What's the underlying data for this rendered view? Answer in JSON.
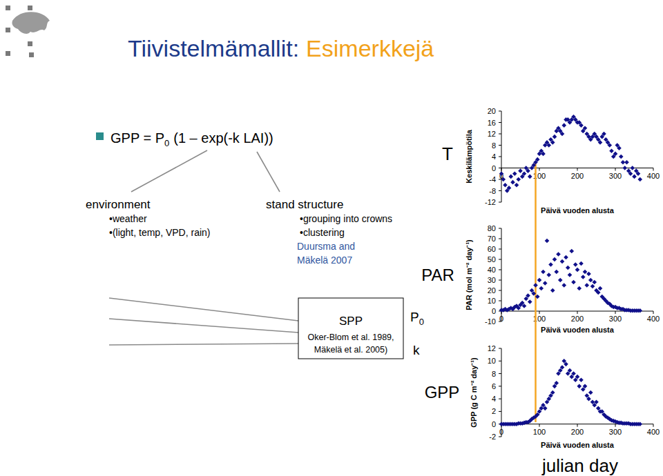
{
  "slide": {
    "title": [
      "Tiivistelmämallit:",
      "Esimerkkejä"
    ],
    "formula": {
      "text": "GPP = P",
      "subscript": "0",
      "rest": "(1 – exp(-k LAI))"
    },
    "environment": {
      "heading": "environment",
      "items": [
        "•weather",
        "•(light, temp, VPD, rain)"
      ]
    },
    "stand_structure": {
      "heading": "stand structure",
      "items": [
        "•grouping into crowns",
        "•clustering"
      ],
      "reference": [
        "Duursma and",
        "Mäkelä 2007"
      ]
    },
    "spp_box": {
      "title": "SPP",
      "lines": [
        "Oker-Blom et al. 1989,",
        "Mäkelä et al. 2005)"
      ]
    },
    "outputs": [
      {
        "symbol": "P",
        "subscript": "0"
      },
      {
        "symbol": "k"
      }
    ],
    "highlight_day": 90
  },
  "chart_data": [
    {
      "type": "scatter",
      "title": "T",
      "y_label": "Keskilämpötila",
      "x_label": "Päivä vuoden alusta",
      "color": "#10108a",
      "marker": "diamond",
      "x": [
        0,
        5,
        10,
        15,
        20,
        25,
        30,
        35,
        40,
        45,
        50,
        55,
        60,
        65,
        70,
        75,
        80,
        85,
        90,
        95,
        100,
        105,
        110,
        115,
        120,
        125,
        130,
        135,
        140,
        145,
        150,
        155,
        160,
        165,
        170,
        175,
        180,
        185,
        190,
        195,
        200,
        205,
        210,
        215,
        220,
        225,
        230,
        235,
        240,
        245,
        250,
        255,
        260,
        265,
        270,
        275,
        280,
        285,
        290,
        295,
        300,
        305,
        310,
        315,
        320,
        325,
        330,
        335,
        340,
        345,
        350,
        355,
        360,
        365
      ],
      "values": [
        -2,
        -4,
        -6,
        -8,
        -7,
        -3,
        -5,
        -2,
        -6,
        -4,
        -1,
        -3,
        -2,
        0,
        -1,
        -3,
        0,
        1,
        2,
        3,
        5,
        6,
        5,
        8,
        9,
        8,
        10,
        9,
        11,
        13,
        14,
        13,
        12,
        15,
        17,
        17,
        16,
        17,
        18,
        17,
        16,
        16,
        15,
        13,
        14,
        12,
        11,
        10,
        11,
        12,
        11,
        10,
        9,
        11,
        12,
        10,
        9,
        8,
        6,
        4,
        5,
        8,
        7,
        4,
        2,
        0,
        2,
        -1,
        -2,
        0,
        -3,
        -1,
        -2,
        -4
      ],
      "xlim": [
        0,
        400
      ],
      "xticks": [
        0,
        100,
        200,
        300,
        400
      ],
      "ylim": [
        -12,
        20
      ],
      "yticks": [
        -12,
        -8,
        -4,
        0,
        4,
        8,
        12,
        16,
        20
      ],
      "grid": false
    },
    {
      "type": "scatter",
      "title": "PAR",
      "y_label": "PAR (mol m⁻² day⁻¹)",
      "x_label": "Päivä vuoden alusta",
      "color": "#10108a",
      "marker": "diamond",
      "x": [
        0,
        5,
        10,
        15,
        20,
        25,
        30,
        35,
        40,
        45,
        50,
        55,
        60,
        65,
        70,
        75,
        80,
        85,
        90,
        95,
        100,
        105,
        110,
        115,
        120,
        125,
        130,
        135,
        140,
        145,
        150,
        155,
        160,
        165,
        170,
        175,
        180,
        185,
        190,
        195,
        200,
        205,
        210,
        215,
        220,
        225,
        230,
        235,
        240,
        245,
        250,
        255,
        260,
        265,
        270,
        275,
        280,
        285,
        290,
        295,
        300,
        305,
        310,
        315,
        320,
        325,
        330,
        335,
        340,
        345,
        350,
        355,
        360,
        365
      ],
      "values": [
        1,
        1,
        2,
        1,
        2,
        3,
        2,
        4,
        5,
        3,
        6,
        8,
        5,
        12,
        15,
        9,
        20,
        17,
        25,
        14,
        30,
        22,
        38,
        27,
        68,
        35,
        45,
        20,
        50,
        38,
        55,
        30,
        48,
        25,
        52,
        42,
        35,
        58,
        28,
        45,
        40,
        22,
        46,
        33,
        38,
        25,
        36,
        30,
        24,
        28,
        20,
        18,
        22,
        14,
        12,
        10,
        8,
        7,
        5,
        4,
        4,
        3,
        3,
        2,
        2,
        1,
        1,
        1,
        0.5,
        0.5,
        0.5,
        0.5,
        0.5,
        0.5
      ],
      "xlim": [
        0,
        400
      ],
      "xticks": [
        0,
        100,
        200,
        300,
        400
      ],
      "ylim": [
        -10,
        80
      ],
      "yticks": [
        -10,
        0,
        10,
        20,
        30,
        40,
        50,
        60,
        70,
        80
      ],
      "grid": false
    },
    {
      "type": "scatter",
      "title": "GPP",
      "y_label": "GPP (g C m⁻² day⁻¹)",
      "x_label": "Päivä vuoden alusta",
      "annotation": "julian day",
      "color": "#10108a",
      "marker": "diamond",
      "x": [
        0,
        5,
        10,
        15,
        20,
        25,
        30,
        35,
        40,
        45,
        50,
        55,
        60,
        65,
        70,
        75,
        80,
        85,
        90,
        95,
        100,
        105,
        110,
        115,
        120,
        125,
        130,
        135,
        140,
        145,
        150,
        155,
        160,
        165,
        170,
        175,
        180,
        185,
        190,
        195,
        200,
        205,
        210,
        215,
        220,
        225,
        230,
        235,
        240,
        245,
        250,
        255,
        260,
        265,
        270,
        275,
        280,
        285,
        290,
        295,
        300,
        305,
        310,
        315,
        320,
        325,
        330,
        335,
        340,
        345,
        350,
        355,
        360,
        365
      ],
      "values": [
        0,
        0,
        0,
        0,
        0,
        0,
        0,
        0,
        0,
        0.1,
        0.1,
        0.1,
        0.2,
        0.3,
        0.3,
        0.5,
        0.8,
        1,
        1.2,
        1.5,
        2,
        2.5,
        3,
        2.5,
        3.5,
        4,
        4.5,
        5,
        6,
        6.5,
        8,
        8.5,
        9,
        10,
        9.5,
        8,
        8.5,
        7.5,
        8,
        7,
        7.5,
        6,
        7,
        5.5,
        6,
        4.5,
        4,
        5,
        3.5,
        3,
        3.5,
        2.5,
        2,
        2,
        1.5,
        1.2,
        1,
        0.8,
        0.6,
        0.5,
        0.4,
        0.3,
        0.2,
        0.2,
        0.1,
        0.1,
        0.1,
        0.1,
        0,
        0,
        0,
        0,
        0,
        0
      ],
      "xlim": [
        0,
        400
      ],
      "xticks": [
        0,
        100,
        200,
        300,
        400
      ],
      "ylim": [
        -2,
        12
      ],
      "yticks": [
        -2,
        0,
        2,
        4,
        6,
        8,
        10,
        12
      ],
      "grid": false
    }
  ]
}
